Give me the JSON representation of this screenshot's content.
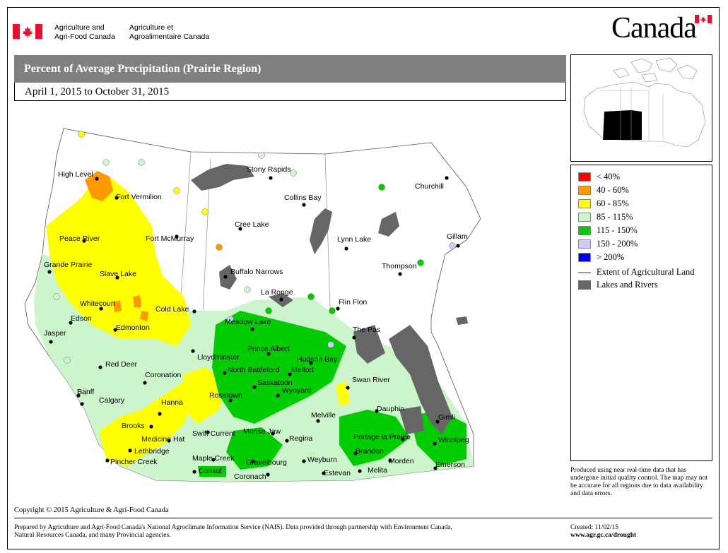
{
  "header": {
    "dept_en": [
      "Agriculture and",
      "Agri-Food Canada"
    ],
    "dept_fr": [
      "Agriculture et",
      "Agroalimentaire Canada"
    ],
    "wordmark": "Canada"
  },
  "title": "Percent of Average Precipitation (Prairie Region)",
  "date_range": "April 1, 2015 to October 31, 2015",
  "legend": {
    "items": [
      {
        "label": "< 40%",
        "color": "#ff0000"
      },
      {
        "label": "40 - 60%",
        "color": "#ff9900"
      },
      {
        "label": "60 - 85%",
        "color": "#ffff00"
      },
      {
        "label": "85 - 115%",
        "color": "#ccf5cc"
      },
      {
        "label": "115 - 150%",
        "color": "#00cc00"
      },
      {
        "label": "150 - 200%",
        "color": "#ccccff"
      },
      {
        "label": "> 200%",
        "color": "#0000ff"
      }
    ],
    "agri_extent": "Extent of Agricultural Land",
    "lakes": "Lakes and Rivers",
    "lakes_color": "#666666"
  },
  "disclaimer": "Produced using near real-time data that has undergone initial quality control. The map may not be accurate for all regions due to data availability and data errors.",
  "cities": [
    "High Level",
    "Fort Vermilion",
    "Stony Rapids",
    "Churchill",
    "Collins Bay",
    "Fort McMurray",
    "Cree Lake",
    "Peace River",
    "Gillam",
    "Lynn Lake",
    "Grande Prairie",
    "Slave Lake",
    "Buffalo Narrows",
    "Thompson",
    "La Ronge",
    "Whitecourt",
    "Cold Lake",
    "Flin Flon",
    "Edson",
    "Meadow Lake",
    "Edmonton",
    "The Pas",
    "Jasper",
    "Prince Albert",
    "Lloydminster",
    "Hudson Bay",
    "Red Deer",
    "North Battleford",
    "Melfort",
    "Coronation",
    "Saskatoon",
    "Swan River",
    "Banff",
    "Wynyard",
    "Calgary",
    "Rosetown",
    "Dauphin",
    "Hanna",
    "Melville",
    "Gimli",
    "Brooks",
    "Swift Current",
    "Moose Jaw",
    "Portage la Prairie",
    "Medicine Hat",
    "Regina",
    "Winnipeg",
    "Lethbridge",
    "Brandon",
    "Pincher Creek",
    "Maple Creek",
    "Gravelbourg",
    "Weyburn",
    "Morden",
    "Emerson",
    "Consul",
    "Estevan",
    "Melita",
    "Coronach"
  ],
  "footer": {
    "copyright": "Copyright © 2015 Agriculture & Agri-Food Canada",
    "prepared": "Prepared by Agriculture and Agri-Food Canada's National Agroclimate Information Service (NAIS). Data provided through partnership with Environment Canada, Natural Resources Canada, and many Provincial agencies.",
    "created": "Created: 11/02/15",
    "url": "www.agr.gc.ca/drought"
  }
}
